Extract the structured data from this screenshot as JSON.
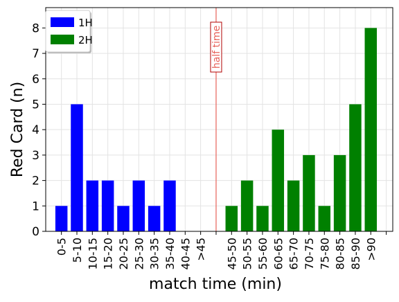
{
  "chart_data": {
    "type": "bar",
    "xlabel": "match time (min)",
    "ylabel": "Red Card (n)",
    "ylim": [
      0,
      8.8
    ],
    "yticks": [
      0,
      1,
      2,
      3,
      4,
      5,
      6,
      7,
      8
    ],
    "grid": true,
    "legend_position": "top-left",
    "categories": [
      "0-5",
      "5-10",
      "10-15",
      "15-20",
      "20-25",
      "25-30",
      "30-35",
      "35-40",
      "40-45",
      ">45",
      "",
      "45-50",
      "50-55",
      "55-60",
      "60-65",
      "65-70",
      "70-75",
      "75-80",
      "80-85",
      "85-90",
      ">90",
      ""
    ],
    "series": [
      {
        "name": "1H",
        "color": "#0000ff",
        "values": [
          1,
          5,
          2,
          2,
          1,
          2,
          1,
          2,
          0,
          0,
          null,
          null,
          null,
          null,
          null,
          null,
          null,
          null,
          null,
          null,
          null,
          null
        ]
      },
      {
        "name": "2H",
        "color": "#008000",
        "values": [
          null,
          null,
          null,
          null,
          null,
          null,
          null,
          null,
          null,
          null,
          null,
          1,
          2,
          1,
          4,
          2,
          3,
          1,
          3,
          5,
          8,
          null
        ]
      }
    ],
    "annotations": [
      {
        "text": "half time",
        "at_category_index": 10,
        "color": "#e8625a"
      }
    ]
  }
}
